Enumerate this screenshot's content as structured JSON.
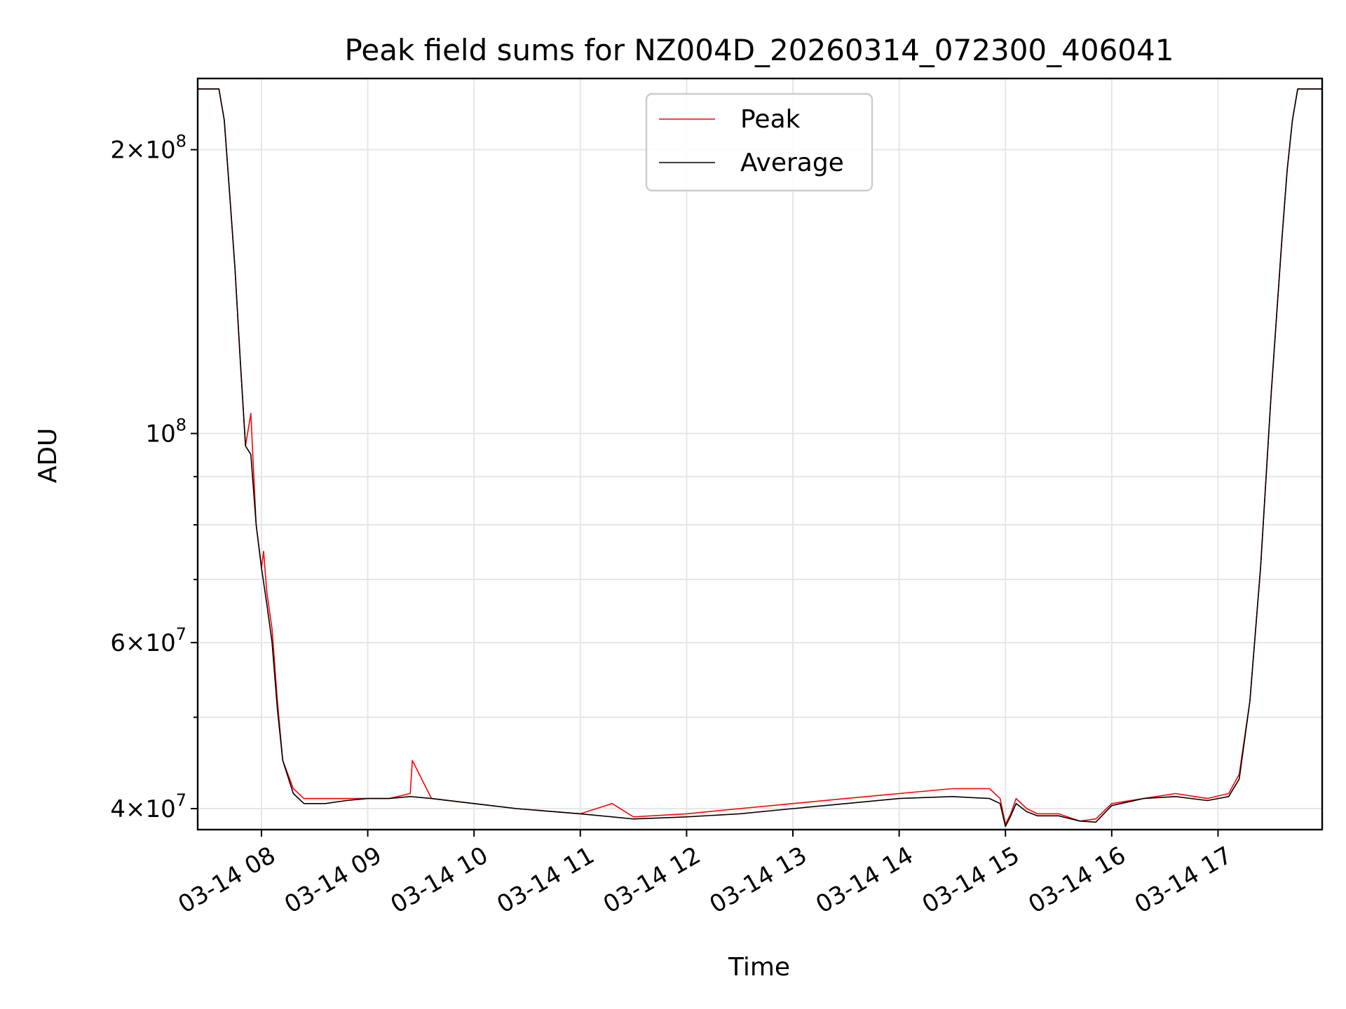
{
  "chart_data": {
    "type": "line",
    "title": "Peak field sums for NZ004D_20260314_072300_406041",
    "xlabel": "Time",
    "ylabel": "ADU",
    "yscale": "log",
    "grid": true,
    "legend_position": "top-center",
    "x_range_hours": [
      7.4,
      17.98
    ],
    "y_range": [
      38000000,
      238000000
    ],
    "x_ticks": [
      {
        "value": 8,
        "label": "03-14 08"
      },
      {
        "value": 9,
        "label": "03-14 09"
      },
      {
        "value": 10,
        "label": "03-14 10"
      },
      {
        "value": 11,
        "label": "03-14 11"
      },
      {
        "value": 12,
        "label": "03-14 12"
      },
      {
        "value": 13,
        "label": "03-14 13"
      },
      {
        "value": 14,
        "label": "03-14 14"
      },
      {
        "value": 15,
        "label": "03-14 15"
      },
      {
        "value": 16,
        "label": "03-14 16"
      },
      {
        "value": 17,
        "label": "03-14 17"
      }
    ],
    "y_major_ticks": [
      {
        "value": 200000000,
        "mantissa": "2",
        "exponent": "8"
      },
      {
        "value": 100000000,
        "mantissa": "",
        "exponent": "8"
      },
      {
        "value": 60000000,
        "mantissa": "6",
        "exponent": "7"
      },
      {
        "value": 40000000,
        "mantissa": "4",
        "exponent": "7"
      }
    ],
    "y_minor_grid": [
      90000000,
      80000000,
      70000000,
      50000000
    ],
    "series": [
      {
        "name": "Peak",
        "color": "#ff0000",
        "x": [
          7.4,
          7.6,
          7.65,
          7.7,
          7.75,
          7.8,
          7.85,
          7.9,
          7.95,
          8.0,
          8.02,
          8.05,
          8.1,
          8.15,
          8.2,
          8.3,
          8.4,
          8.6,
          8.8,
          9.0,
          9.2,
          9.4,
          9.42,
          9.6,
          10.0,
          10.4,
          11.0,
          11.3,
          11.5,
          12.0,
          12.5,
          13.0,
          13.5,
          14.0,
          14.5,
          14.85,
          14.95,
          15.0,
          15.05,
          15.1,
          15.2,
          15.3,
          15.5,
          15.7,
          15.85,
          16.0,
          16.3,
          16.6,
          16.9,
          17.1,
          17.2,
          17.3,
          17.4,
          17.5,
          17.6,
          17.65,
          17.7,
          17.75,
          17.98
        ],
        "y": [
          232000000,
          232000000,
          215000000,
          180000000,
          150000000,
          120000000,
          97000000,
          105000000,
          80000000,
          72000000,
          75000000,
          68000000,
          62000000,
          52000000,
          45000000,
          42000000,
          41000000,
          41000000,
          41000000,
          41000000,
          41000000,
          41500000,
          45000000,
          41000000,
          40500000,
          40000000,
          39500000,
          40500000,
          39200000,
          39500000,
          40000000,
          40500000,
          41000000,
          41500000,
          42000000,
          42000000,
          41000000,
          38500000,
          39500000,
          41000000,
          40000000,
          39500000,
          39500000,
          38800000,
          39000000,
          40500000,
          41000000,
          41500000,
          41000000,
          41500000,
          43500000,
          52000000,
          72000000,
          110000000,
          160000000,
          190000000,
          215000000,
          232000000,
          232000000
        ]
      },
      {
        "name": "Average",
        "color": "#000000",
        "x": [
          7.4,
          7.6,
          7.65,
          7.7,
          7.75,
          7.8,
          7.85,
          7.9,
          7.95,
          8.0,
          8.05,
          8.1,
          8.15,
          8.2,
          8.3,
          8.4,
          8.6,
          8.8,
          9.0,
          9.2,
          9.4,
          9.6,
          10.0,
          10.4,
          11.0,
          11.5,
          12.0,
          12.5,
          13.0,
          13.5,
          14.0,
          14.5,
          14.85,
          14.95,
          15.0,
          15.05,
          15.1,
          15.2,
          15.3,
          15.5,
          15.7,
          15.85,
          16.0,
          16.3,
          16.6,
          16.9,
          17.1,
          17.2,
          17.3,
          17.4,
          17.5,
          17.6,
          17.65,
          17.7,
          17.75,
          17.98
        ],
        "y": [
          232000000,
          232000000,
          215000000,
          180000000,
          150000000,
          120000000,
          97000000,
          95000000,
          80000000,
          72000000,
          66000000,
          60000000,
          51000000,
          45000000,
          41500000,
          40500000,
          40500000,
          40800000,
          41000000,
          41000000,
          41200000,
          41000000,
          40500000,
          40000000,
          39500000,
          39000000,
          39200000,
          39500000,
          40000000,
          40500000,
          41000000,
          41200000,
          41000000,
          40500000,
          38300000,
          39300000,
          40500000,
          39700000,
          39300000,
          39300000,
          38800000,
          38700000,
          40300000,
          41000000,
          41200000,
          40800000,
          41200000,
          43000000,
          52000000,
          72000000,
          110000000,
          160000000,
          190000000,
          215000000,
          232000000,
          232000000
        ]
      }
    ]
  }
}
